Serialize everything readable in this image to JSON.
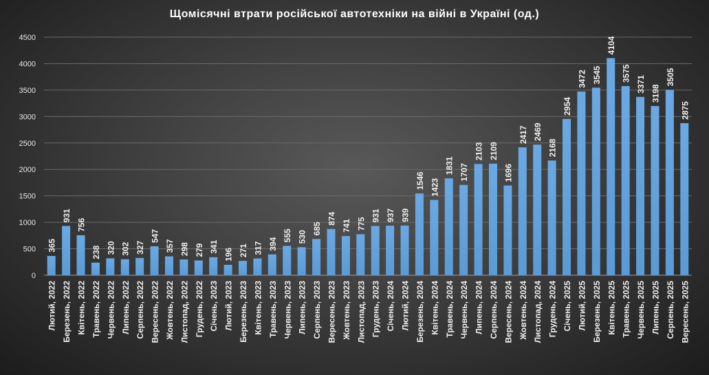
{
  "chart_data": {
    "type": "bar",
    "title": "Щомісячні втрати російської автотехніки на війні в Україні (од.)",
    "xlabel": "",
    "ylabel": "",
    "ylim": [
      0,
      4500
    ],
    "yticks": [
      0,
      500,
      1000,
      1500,
      2000,
      2500,
      3000,
      3500,
      4000,
      4500
    ],
    "grid": true,
    "bar_color": "#5b9bd5",
    "categories": [
      "Лютий, 2022",
      "Березень, 2022",
      "Квітень, 2022",
      "Травень, 2022",
      "Червень, 2022",
      "Липень, 2022",
      "Серпень, 2022",
      "Вересень, 2022",
      "Жовтень, 2022",
      "Листопад, 2022",
      "Грудень, 2022",
      "Січень, 2023",
      "Лютий, 2023",
      "Березень, 2023",
      "Квітень, 2023",
      "Травень, 2023",
      "Червень, 2023",
      "Липень, 2023",
      "Серпень, 2023",
      "Вересень, 2023",
      "Жовтень, 2023",
      "Листопад, 2023",
      "Грудень, 2023",
      "Січень, 2024",
      "Лютий, 2024",
      "Березень, 2024",
      "Квітень, 2024",
      "Травень, 2024",
      "Червень, 2024",
      "Липень, 2024",
      "Серпень, 2024",
      "Вересень, 2024",
      "Жовтень, 2024",
      "Листопад, 2024",
      "Грудень, 2024",
      "Січень, 2025",
      "Лютий, 2025",
      "Березень, 2025",
      "Квітень, 2025",
      "Травень, 2025",
      "Червень, 2025",
      "Липень, 2025",
      "Серпень, 2025",
      "Вересень, 2025"
    ],
    "values": [
      365,
      931,
      756,
      238,
      320,
      302,
      327,
      547,
      357,
      298,
      279,
      341,
      196,
      271,
      317,
      394,
      555,
      530,
      685,
      874,
      741,
      775,
      931,
      937,
      939,
      1546,
      1423,
      1831,
      1707,
      2103,
      2109,
      1696,
      2417,
      2469,
      2168,
      2954,
      3472,
      3545,
      4104,
      3575,
      3371,
      3198,
      3505,
      2875
    ]
  }
}
